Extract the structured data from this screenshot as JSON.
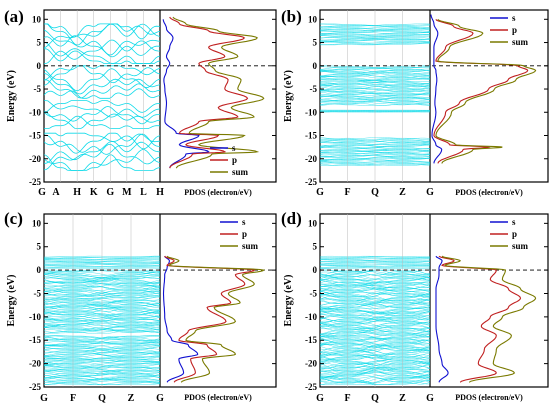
{
  "chart_data": [
    {
      "type": "line",
      "panel": "(a)",
      "ylabel": "Energy (eV)",
      "ylim": [
        -25,
        12
      ],
      "yticks": [
        10,
        5,
        0,
        -5,
        -10,
        -15,
        -20,
        -25
      ],
      "kpoints": [
        "G",
        "A",
        "H",
        "K",
        "G",
        "M",
        "L",
        "H"
      ],
      "pdos_xlabel": "PDOS (electron/eV)",
      "fermi_level": 0,
      "band_clusters": [
        [
          -22.5,
          -14.5
        ],
        [
          -13.5,
          -7.5
        ],
        [
          -7.0,
          0
        ],
        [
          0.5,
          9
        ]
      ],
      "legend": [
        "s",
        "p",
        "sum"
      ],
      "legend_position": "lower-right",
      "pdos": {
        "s": [
          [
            -22,
            0.3
          ],
          [
            -19,
            0.8
          ],
          [
            -18.5,
            1.5
          ],
          [
            -17,
            0.6
          ],
          [
            -15,
            1.2
          ],
          [
            -14.5,
            0.5
          ],
          [
            -12,
            0.15
          ],
          [
            -8,
            0.2
          ],
          [
            -5,
            0.15
          ],
          [
            -3,
            0.12
          ],
          [
            -1,
            0.2
          ],
          [
            0.5,
            0.3
          ],
          [
            2,
            0.2
          ],
          [
            4,
            0.3
          ],
          [
            6,
            0.4
          ],
          [
            8,
            0.2
          ],
          [
            10,
            0.1
          ]
        ],
        "p": [
          [
            -22,
            0.3
          ],
          [
            -19,
            1.0
          ],
          [
            -18.5,
            2.0
          ],
          [
            -17,
            0.8
          ],
          [
            -15,
            1.8
          ],
          [
            -14.5,
            0.6
          ],
          [
            -12,
            1.2
          ],
          [
            -11,
            2.4
          ],
          [
            -9,
            1.8
          ],
          [
            -7,
            2.7
          ],
          [
            -5,
            2.0
          ],
          [
            -3,
            2.1
          ],
          [
            -1,
            1.4
          ],
          [
            0.5,
            1.2
          ],
          [
            2,
            2.0
          ],
          [
            4,
            1.5
          ],
          [
            6,
            2.6
          ],
          [
            7.5,
            1.5
          ],
          [
            9,
            0.6
          ],
          [
            10.5,
            0.3
          ]
        ],
        "sum": [
          [
            -22,
            0.5
          ],
          [
            -19,
            1.6
          ],
          [
            -18.5,
            3.0
          ],
          [
            -17,
            1.2
          ],
          [
            -15,
            2.6
          ],
          [
            -14.5,
            0.9
          ],
          [
            -12,
            1.5
          ],
          [
            -11,
            2.9
          ],
          [
            -9,
            2.2
          ],
          [
            -7,
            3.2
          ],
          [
            -5,
            2.4
          ],
          [
            -3,
            2.5
          ],
          [
            -1,
            1.7
          ],
          [
            0.5,
            1.5
          ],
          [
            2,
            2.4
          ],
          [
            4,
            1.9
          ],
          [
            6,
            3.0
          ],
          [
            7.5,
            1.8
          ],
          [
            9,
            0.8
          ],
          [
            10.5,
            0.4
          ]
        ]
      }
    },
    {
      "type": "line",
      "panel": "(b)",
      "ylabel": "Energy (eV)",
      "ylim": [
        -25,
        12
      ],
      "yticks": [
        10,
        5,
        0,
        -5,
        -10,
        -15,
        -20,
        -25
      ],
      "kpoints": [
        "G",
        "F",
        "Q",
        "Z",
        "G"
      ],
      "pdos_xlabel": "PDOS (electron/eV)",
      "fermi_level": 0,
      "band_clusters": [
        [
          -21.5,
          -15.5
        ],
        [
          -10,
          -9.5
        ],
        [
          -8.5,
          0
        ],
        [
          4.5,
          9
        ]
      ],
      "legend": [
        "s",
        "p",
        "sum"
      ],
      "legend_position": "top-right",
      "pdos": {
        "s": [
          [
            -21,
            0.2
          ],
          [
            -18,
            0.6
          ],
          [
            -17,
            0.3
          ],
          [
            -15,
            0.1
          ],
          [
            -10,
            0.3
          ],
          [
            -8,
            0.25
          ],
          [
            -5,
            0.3
          ],
          [
            -3,
            0.35
          ],
          [
            -1,
            0.3
          ],
          [
            0,
            0.2
          ],
          [
            4,
            0.2
          ],
          [
            7,
            0.4
          ],
          [
            9,
            0.2
          ],
          [
            11,
            0.05
          ]
        ],
        "p": [
          [
            -21,
            0.4
          ],
          [
            -18,
            1.7
          ],
          [
            -17.5,
            3.0
          ],
          [
            -17,
            1.0
          ],
          [
            -15,
            0.2
          ],
          [
            -10,
            0.8
          ],
          [
            -8,
            1.5
          ],
          [
            -5,
            3.0
          ],
          [
            -3,
            4.0
          ],
          [
            -1,
            5.0
          ],
          [
            0,
            4.5
          ],
          [
            1,
            0.3
          ],
          [
            4,
            0.8
          ],
          [
            7,
            2.2
          ],
          [
            8.5,
            1.2
          ],
          [
            10,
            0.3
          ]
        ],
        "sum": [
          [
            -21,
            0.6
          ],
          [
            -18,
            2.2
          ],
          [
            -17.5,
            3.7
          ],
          [
            -17,
            1.3
          ],
          [
            -15,
            0.3
          ],
          [
            -10,
            1.1
          ],
          [
            -8,
            1.8
          ],
          [
            -5,
            3.3
          ],
          [
            -3,
            4.4
          ],
          [
            -1,
            5.4
          ],
          [
            0,
            4.8
          ],
          [
            1,
            0.4
          ],
          [
            4,
            1.0
          ],
          [
            7,
            2.7
          ],
          [
            8.5,
            1.5
          ],
          [
            10,
            0.4
          ]
        ]
      }
    },
    {
      "type": "line",
      "panel": "(c)",
      "ylabel": "Energy (eV)",
      "ylim": [
        -25,
        12
      ],
      "yticks": [
        10,
        5,
        0,
        -5,
        -10,
        -15,
        -20,
        -25
      ],
      "kpoints": [
        "G",
        "F",
        "Q",
        "Z",
        "G"
      ],
      "pdos_xlabel": "PDOS (electron/eV)",
      "fermi_level": 0,
      "band_clusters": [
        [
          -24.5,
          -14
        ],
        [
          -13.5,
          0
        ],
        [
          0.3,
          3
        ]
      ],
      "legend": [
        "s",
        "p",
        "sum"
      ],
      "legend_position": "top-right",
      "pdos": {
        "s": [
          [
            -24,
            0.3
          ],
          [
            -22,
            1.0
          ],
          [
            -19,
            0.8
          ],
          [
            -18,
            1.6
          ],
          [
            -16,
            1.2
          ],
          [
            -15,
            0.5
          ],
          [
            -13,
            0.3
          ],
          [
            -10,
            0.2
          ],
          [
            -5,
            0.15
          ],
          [
            -1,
            0.2
          ],
          [
            0.5,
            0.3
          ],
          [
            2,
            0.4
          ],
          [
            3,
            0.2
          ]
        ],
        "p": [
          [
            -24,
            0.6
          ],
          [
            -22,
            1.5
          ],
          [
            -19,
            1.3
          ],
          [
            -18,
            2.4
          ],
          [
            -16,
            2.0
          ],
          [
            -15,
            0.8
          ],
          [
            -13,
            1.2
          ],
          [
            -11,
            2.8
          ],
          [
            -8,
            2.0
          ],
          [
            -7,
            3.0
          ],
          [
            -5,
            2.6
          ],
          [
            -3,
            3.6
          ],
          [
            -1,
            3.2
          ],
          [
            0,
            4.0
          ],
          [
            1,
            0.3
          ],
          [
            2,
            0.6
          ],
          [
            3,
            0.2
          ]
        ],
        "sum": [
          [
            -24,
            0.9
          ],
          [
            -22,
            2.1
          ],
          [
            -19,
            1.8
          ],
          [
            -18,
            3.2
          ],
          [
            -16,
            2.6
          ],
          [
            -15,
            1.1
          ],
          [
            -13,
            1.5
          ],
          [
            -11,
            3.2
          ],
          [
            -8,
            2.3
          ],
          [
            -7,
            3.4
          ],
          [
            -5,
            2.9
          ],
          [
            -3,
            4.0
          ],
          [
            -1,
            3.5
          ],
          [
            0,
            4.4
          ],
          [
            1,
            0.4
          ],
          [
            2,
            0.8
          ],
          [
            3,
            0.3
          ]
        ]
      }
    },
    {
      "type": "line",
      "panel": "(d)",
      "ylabel": "Energy (eV)",
      "ylim": [
        -25,
        12
      ],
      "yticks": [
        10,
        5,
        0,
        -5,
        -10,
        -15,
        -20,
        -25
      ],
      "kpoints": [
        "G",
        "F",
        "Q",
        "Z",
        "G"
      ],
      "pdos_xlabel": "PDOS (electron/eV)",
      "fermi_level": 0,
      "band_clusters": [
        [
          -24.5,
          0
        ],
        [
          0.3,
          3
        ]
      ],
      "legend": [
        "s",
        "p",
        "sum"
      ],
      "legend_position": "top-right",
      "pdos": {
        "s": [
          [
            -24,
            0.3
          ],
          [
            -22,
            0.6
          ],
          [
            -20,
            0.4
          ],
          [
            -17,
            0.3
          ],
          [
            -12,
            0.2
          ],
          [
            -8,
            0.2
          ],
          [
            -4,
            0.2
          ],
          [
            -1,
            0.3
          ],
          [
            0.5,
            0.3
          ],
          [
            2,
            0.4
          ],
          [
            3,
            0.2
          ]
        ],
        "p": [
          [
            -24,
            1.0
          ],
          [
            -22,
            2.2
          ],
          [
            -20,
            1.6
          ],
          [
            -17,
            1.8
          ],
          [
            -14,
            2.2
          ],
          [
            -12,
            1.7
          ],
          [
            -10,
            2.0
          ],
          [
            -8,
            2.6
          ],
          [
            -6,
            3.0
          ],
          [
            -4,
            2.6
          ],
          [
            -2,
            2.0
          ],
          [
            0,
            2.2
          ],
          [
            1,
            0.4
          ],
          [
            2,
            0.8
          ],
          [
            3,
            0.3
          ]
        ],
        "sum": [
          [
            -24,
            1.3
          ],
          [
            -22,
            2.8
          ],
          [
            -20,
            2.1
          ],
          [
            -17,
            2.2
          ],
          [
            -14,
            2.7
          ],
          [
            -12,
            2.1
          ],
          [
            -10,
            2.4
          ],
          [
            -8,
            3.1
          ],
          [
            -6,
            3.5
          ],
          [
            -4,
            3.0
          ],
          [
            -2,
            2.4
          ],
          [
            0,
            2.5
          ],
          [
            1,
            0.5
          ],
          [
            2,
            1.0
          ],
          [
            3,
            0.4
          ]
        ]
      }
    }
  ],
  "colors": {
    "bands": "#00d8e8",
    "s": "#1010d0",
    "p": "#c02020",
    "sum": "#7a7a00",
    "fermi": "#000000"
  }
}
